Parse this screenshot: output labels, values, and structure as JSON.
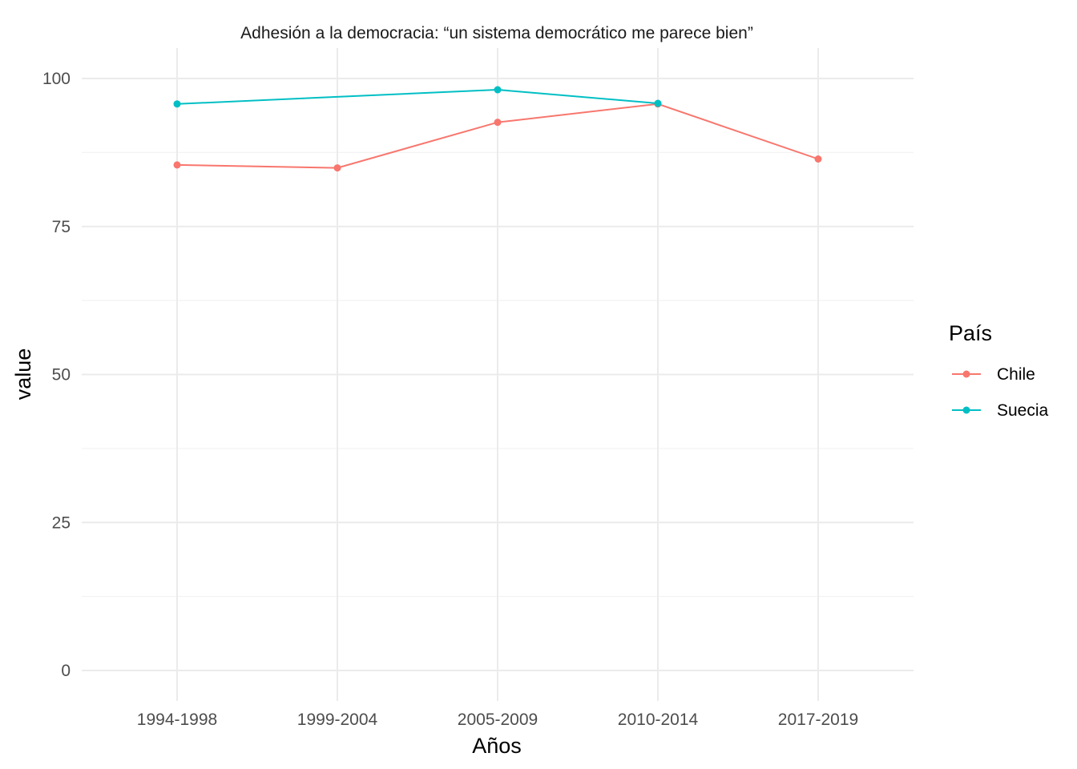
{
  "chart_data": {
    "type": "line",
    "title": "Adhesión a la democracia: “un sistema democrático me parece bien”",
    "xlabel": "Años",
    "ylabel": "value",
    "categories": [
      "1994-1998",
      "1999-2004",
      "2005-2009",
      "2010-2014",
      "2017-2019"
    ],
    "ylim": [
      -2,
      105
    ],
    "yticks": [
      0,
      25,
      50,
      75,
      100
    ],
    "grid": true,
    "legend": {
      "title": "País",
      "position": "right"
    },
    "series": [
      {
        "name": "Chile",
        "color": "#F8766D",
        "values": [
          85.4,
          84.9,
          92.6,
          95.7,
          86.4
        ]
      },
      {
        "name": "Suecia",
        "color": "#00BFC4",
        "values": [
          95.7,
          null,
          98.1,
          95.8,
          null
        ]
      }
    ]
  }
}
